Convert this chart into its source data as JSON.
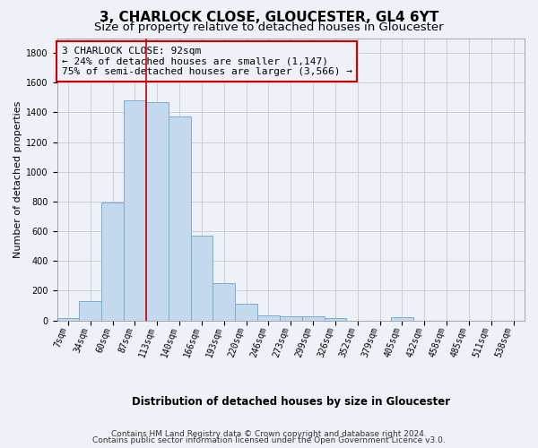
{
  "title": "3, CHARLOCK CLOSE, GLOUCESTER, GL4 6YT",
  "subtitle": "Size of property relative to detached houses in Gloucester",
  "xlabel": "Distribution of detached houses by size in Gloucester",
  "ylabel": "Number of detached properties",
  "bar_color": "#c5d9ee",
  "bar_edge_color": "#7aadd4",
  "bin_labels": [
    "7sqm",
    "34sqm",
    "60sqm",
    "87sqm",
    "113sqm",
    "140sqm",
    "166sqm",
    "193sqm",
    "220sqm",
    "246sqm",
    "273sqm",
    "299sqm",
    "326sqm",
    "352sqm",
    "379sqm",
    "405sqm",
    "432sqm",
    "458sqm",
    "485sqm",
    "511sqm",
    "538sqm"
  ],
  "bar_values": [
    15,
    130,
    795,
    1480,
    1470,
    1370,
    570,
    250,
    110,
    35,
    30,
    30,
    15,
    0,
    0,
    20,
    0,
    0,
    0,
    0,
    0
  ],
  "ylim": [
    0,
    1900
  ],
  "yticks": [
    0,
    200,
    400,
    600,
    800,
    1000,
    1200,
    1400,
    1600,
    1800
  ],
  "vline_color": "#cc0000",
  "vline_position": 3.5,
  "annotation_line1": "3 CHARLOCK CLOSE: 92sqm",
  "annotation_line2": "← 24% of detached houses are smaller (1,147)",
  "annotation_line3": "75% of semi-detached houses are larger (3,566) →",
  "box_color": "#cc0000",
  "footer_line1": "Contains HM Land Registry data © Crown copyright and database right 2024.",
  "footer_line2": "Contains public sector information licensed under the Open Government Licence v3.0.",
  "background_color": "#eef2f8",
  "grid_color": "#c8c8d0",
  "title_fontsize": 11,
  "subtitle_fontsize": 9.5,
  "ylabel_fontsize": 8,
  "xlabel_fontsize": 8.5,
  "tick_fontsize": 7,
  "annotation_fontsize": 8,
  "footer_fontsize": 6.5
}
